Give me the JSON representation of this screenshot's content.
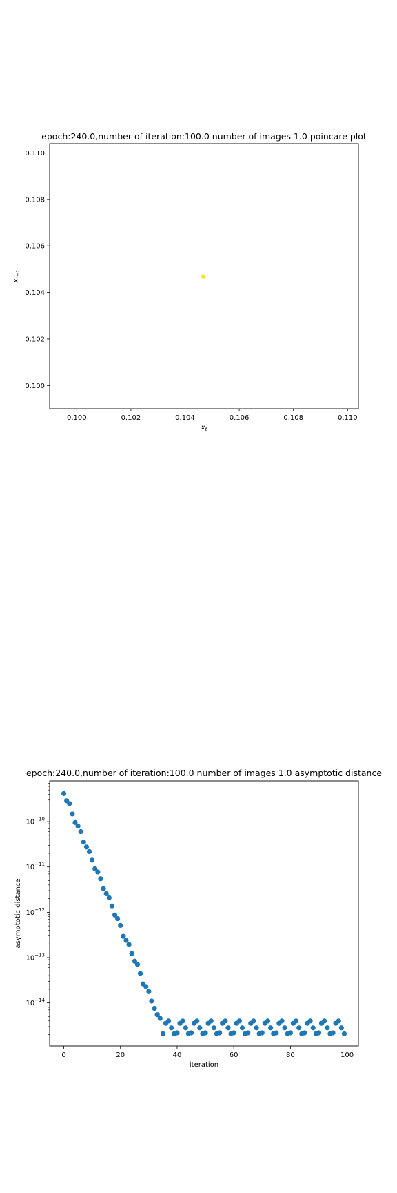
{
  "chart_data": [
    {
      "type": "scatter",
      "title": "epoch:240.0,number of iteration:100.0 number of images 1.0 poincare plot",
      "xlabel_main": "x",
      "xlabel_sub": "t",
      "ylabel_main": "x",
      "ylabel_sub": "t−1",
      "xlim": [
        0.099,
        0.1104
      ],
      "ylim": [
        0.099,
        0.1104
      ],
      "xticks": [
        0.1,
        0.102,
        0.104,
        0.106,
        0.108,
        0.11
      ],
      "xtick_labels": [
        "0.100",
        "0.102",
        "0.104",
        "0.106",
        "0.108",
        "0.110"
      ],
      "yticks": [
        0.1,
        0.102,
        0.104,
        0.106,
        0.108,
        0.11
      ],
      "ytick_labels": [
        "0.100",
        "0.102",
        "0.104",
        "0.106",
        "0.108",
        "0.110"
      ],
      "grid": false,
      "points": [
        {
          "x": 0.10468,
          "y": 0.10468,
          "color": "#e8e31b"
        },
        {
          "x": 0.10469,
          "y": 0.10467,
          "color": "#f0e442"
        },
        {
          "x": 0.10467,
          "y": 0.10469,
          "color": "#fde725"
        }
      ]
    },
    {
      "type": "scatter",
      "title": "epoch:240.0,number of iteration:100.0  number of images 1.0 asymptotic distance",
      "xlabel": "iteration",
      "ylabel": "asymptotic distance",
      "yscale": "log",
      "xlim": [
        -5,
        104
      ],
      "ylim_log10": [
        -14.95,
        -9.1
      ],
      "xticks": [
        0,
        20,
        40,
        60,
        80,
        100
      ],
      "xtick_labels": [
        "0",
        "20",
        "40",
        "60",
        "80",
        "100"
      ],
      "yticks_exp": [
        -14,
        -13,
        -12,
        -11,
        -10
      ],
      "ytick_labels_exp": [
        "−14",
        "−13",
        "−12",
        "−11",
        "−10"
      ],
      "ytick_base": "10",
      "grid": false,
      "color": "#1f77b4",
      "x": [
        0,
        1,
        2,
        3,
        4,
        5,
        6,
        7,
        8,
        9,
        10,
        11,
        12,
        13,
        14,
        15,
        16,
        17,
        18,
        19,
        20,
        21,
        22,
        23,
        24,
        25,
        26,
        27,
        28,
        29,
        30,
        31,
        32,
        33,
        34,
        35,
        36,
        37,
        38,
        39,
        40,
        41,
        42,
        43,
        44,
        45,
        46,
        47,
        48,
        49,
        50,
        51,
        52,
        53,
        54,
        55,
        56,
        57,
        58,
        59,
        60,
        61,
        62,
        63,
        64,
        65,
        66,
        67,
        68,
        69,
        70,
        71,
        72,
        73,
        74,
        75,
        76,
        77,
        78,
        79,
        80,
        81,
        82,
        83,
        84,
        85,
        86,
        87,
        88,
        89,
        90,
        91,
        92,
        93,
        94,
        95,
        96,
        97,
        98,
        99
      ],
      "y_log10": [
        -9.38,
        -9.54,
        -9.6,
        -9.83,
        -10.02,
        -10.1,
        -10.22,
        -10.45,
        -10.56,
        -10.66,
        -10.85,
        -11.04,
        -11.11,
        -11.26,
        -11.48,
        -11.59,
        -11.68,
        -11.86,
        -12.06,
        -12.14,
        -12.29,
        -12.53,
        -12.62,
        -12.71,
        -12.91,
        -13.08,
        -13.15,
        -13.35,
        -13.58,
        -13.64,
        -13.75,
        -13.96,
        -14.12,
        -14.26,
        -14.34,
        -14.68,
        -14.45,
        -14.4,
        -14.55,
        -14.68,
        -14.66,
        -14.45,
        -14.4,
        -14.55,
        -14.68,
        -14.66,
        -14.45,
        -14.4,
        -14.55,
        -14.68,
        -14.66,
        -14.45,
        -14.4,
        -14.55,
        -14.68,
        -14.66,
        -14.45,
        -14.4,
        -14.55,
        -14.68,
        -14.66,
        -14.45,
        -14.4,
        -14.55,
        -14.68,
        -14.66,
        -14.45,
        -14.4,
        -14.55,
        -14.68,
        -14.66,
        -14.45,
        -14.4,
        -14.55,
        -14.68,
        -14.66,
        -14.45,
        -14.4,
        -14.55,
        -14.68,
        -14.66,
        -14.45,
        -14.4,
        -14.55,
        -14.68,
        -14.66,
        -14.45,
        -14.4,
        -14.55,
        -14.68,
        -14.66,
        -14.45,
        -14.4,
        -14.55,
        -14.68,
        -14.66,
        -14.45,
        -14.4,
        -14.55,
        -14.68
      ]
    }
  ]
}
